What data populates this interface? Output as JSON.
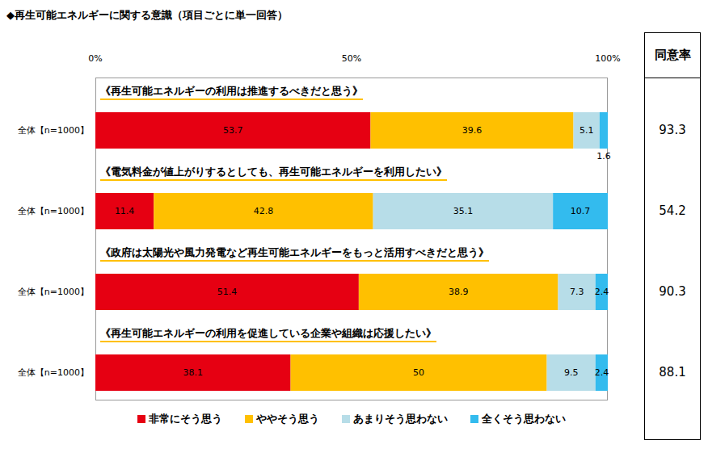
{
  "title": "◆再生可能エネルギーに関する意識（項目ごとに単一回答）",
  "agreement_header": "同意率",
  "chart_data": [
    {
      "type": "bar",
      "orientation": "horizontal",
      "stacked": true,
      "data_labels": true,
      "title": "《再生可能エネルギーの利用は推進するべきだと思う》",
      "categories": [
        "全体【n=1000】"
      ],
      "series": [
        {
          "name": "非常にそう思う",
          "color": "#e60012",
          "values": [
            53.7
          ]
        },
        {
          "name": "ややそう思う",
          "color": "#ffc000",
          "values": [
            39.6
          ]
        },
        {
          "name": "あまりそう思わない",
          "color": "#b7dde8",
          "values": [
            5.1
          ]
        },
        {
          "name": "全くそう思わない",
          "color": "#33bbee",
          "values": [
            1.6
          ]
        }
      ],
      "xlim": [
        0,
        100
      ],
      "xticks": [
        {
          "value": 0,
          "label": "0%"
        },
        {
          "value": 50,
          "label": "50%"
        },
        {
          "value": 100,
          "label": "100%"
        }
      ],
      "agreement_rate": 93.3
    },
    {
      "type": "bar",
      "orientation": "horizontal",
      "stacked": true,
      "data_labels": true,
      "tick_labels": "y",
      "title": "《電気料金が値上がりするとしても、再生可能エネルギーを利用したい》",
      "categories": [
        "全体【n=1000】"
      ],
      "series": [
        {
          "name": "非常にそう思う",
          "color": "#e60012",
          "values": [
            11.4
          ]
        },
        {
          "name": "ややそう思う",
          "color": "#ffc000",
          "values": [
            42.8
          ]
        },
        {
          "name": "あまりそう思わない",
          "color": "#b7dde8",
          "values": [
            35.1
          ]
        },
        {
          "name": "全くそう思わない",
          "color": "#33bbee",
          "values": [
            10.7
          ]
        }
      ],
      "xlim": [
        0,
        100
      ],
      "agreement_rate": 54.2
    },
    {
      "type": "bar",
      "orientation": "horizontal",
      "stacked": true,
      "data_labels": true,
      "tick_labels": "y",
      "title": "《政府は太陽光や風力発電など再生可能エネルギーをもっと活用すべきだと思う》",
      "categories": [
        "全体【n=1000】"
      ],
      "series": [
        {
          "name": "非常にそう思う",
          "color": "#e60012",
          "values": [
            51.4
          ]
        },
        {
          "name": "ややそう思う",
          "color": "#ffc000",
          "values": [
            38.9
          ]
        },
        {
          "name": "あまりそう思わない",
          "color": "#b7dde8",
          "values": [
            7.3
          ]
        },
        {
          "name": "全くそう思わない",
          "color": "#33bbee",
          "values": [
            2.4
          ]
        }
      ],
      "xlim": [
        0,
        100
      ],
      "agreement_rate": 90.3
    },
    {
      "type": "bar",
      "orientation": "horizontal",
      "stacked": true,
      "data_labels": true,
      "tick_labels": "y",
      "legend": "bottom",
      "title": "《再生可能エネルギーの利用を促進している企業や組織は応援したい》",
      "categories": [
        "全体【n=1000】"
      ],
      "series": [
        {
          "name": "非常にそう思う",
          "color": "#e60012",
          "values": [
            38.1
          ]
        },
        {
          "name": "ややそう思う",
          "color": "#ffc000",
          "values": [
            50.0
          ]
        },
        {
          "name": "あまりそう思わない",
          "color": "#b7dde8",
          "values": [
            9.5
          ]
        },
        {
          "name": "全くそう思わない",
          "color": "#33bbee",
          "values": [
            2.4
          ]
        }
      ],
      "xlim": [
        0,
        100
      ],
      "agreement_rate": 88.1
    }
  ]
}
